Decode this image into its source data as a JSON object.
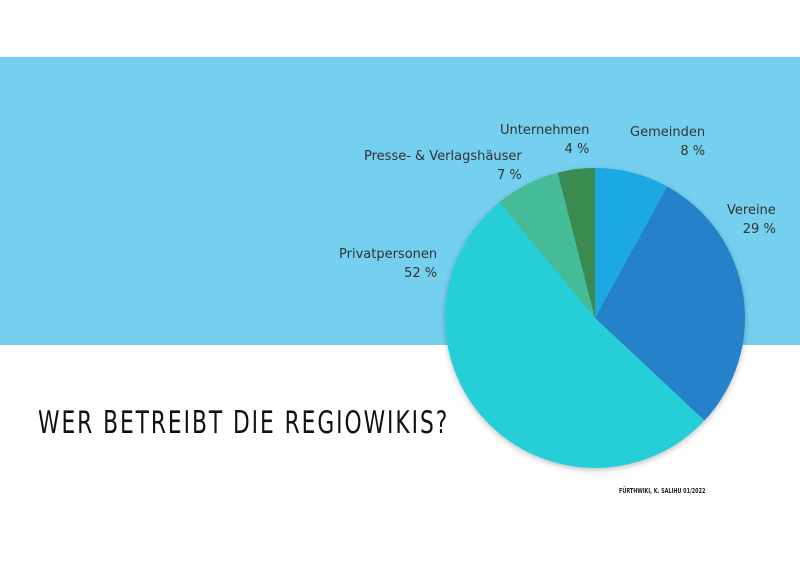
{
  "title": "WER BETREIBT DIE REGIOWIKIS?",
  "credit": "FÜRTHWIKI, K. SALIHU 01/2022",
  "colors": {
    "band": "#75cfef",
    "background": "#ffffff"
  },
  "chart_data": {
    "type": "pie",
    "title": "WER BETREIBT DIE REGIOWIKIS?",
    "start": "top, clockwise",
    "slices": [
      {
        "label": "Gemeinden",
        "value": 8,
        "value_label": "8 %",
        "color": "#1fa8e0"
      },
      {
        "label": "Vereine",
        "value": 29,
        "value_label": "29 %",
        "color": "#2782c8"
      },
      {
        "label": "Privatpersonen",
        "value": 52,
        "value_label": "52 %",
        "color": "#28cfd7"
      },
      {
        "label": "Presse- & Verlagshäuser",
        "value": 7,
        "value_label": "7 %",
        "color": "#45bb98"
      },
      {
        "label": "Unternehmen",
        "value": 4,
        "value_label": "4 %",
        "color": "#3b8a50"
      }
    ]
  }
}
